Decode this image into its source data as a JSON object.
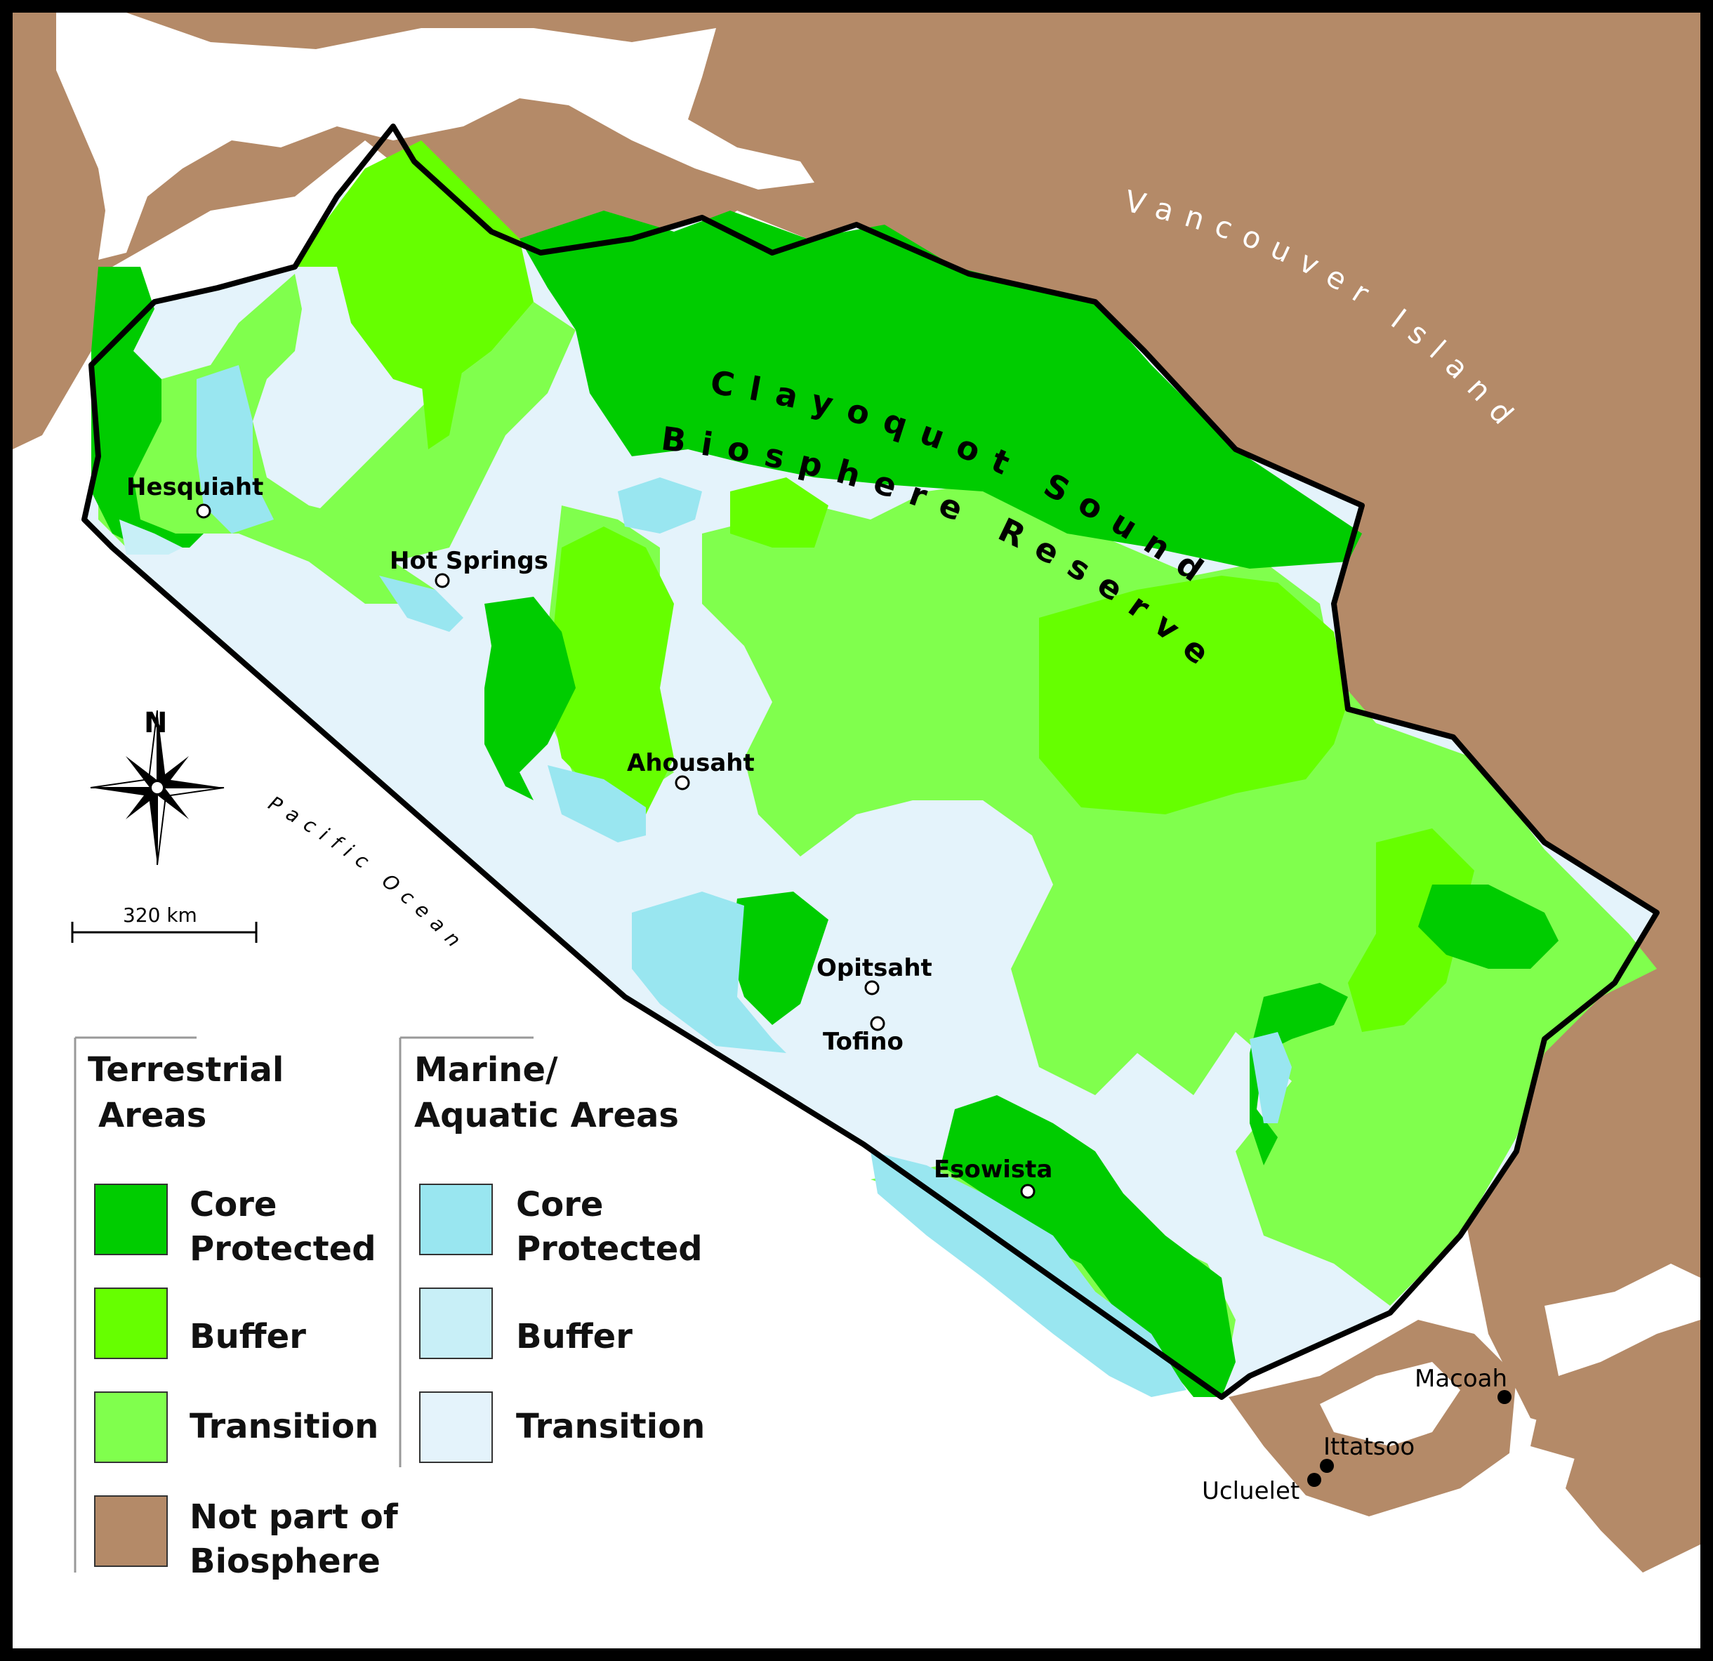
{
  "map": {
    "title_line1": "Clayoquot Sound",
    "title_line2": "Biosphere Reserve",
    "island_label": "Vancouver Island",
    "ocean_label": "Pacific Ocean",
    "north_label": "N",
    "scale_label": "320 km",
    "colors": {
      "land_outside": "#b48a68",
      "sea": "#ffffff",
      "core_terrestrial": "#00cc00",
      "buffer_terrestrial": "#66ff00",
      "transition_terrestrial": "#80ff4d",
      "core_marine": "#99e6f0",
      "buffer_marine": "#c8eff7",
      "transition_marine": "#e4f3fb",
      "frame": "#000000"
    },
    "places": {
      "hesquiaht": "Hesquiaht",
      "hot_springs": "Hot Springs",
      "ahousaht": "Ahousaht",
      "opitsaht": "Opitsaht",
      "tofino": "Tofino",
      "esowista": "Esowista",
      "macoah": "Macoah",
      "ittatsoo": "Ittatsoo",
      "ucluelet": "Ucluelet"
    }
  },
  "legend": {
    "terrestrial": {
      "title_line1": "Terrestrial",
      "title_line2": "Areas",
      "core_line1": "Core",
      "core_line2": "Protected",
      "buffer": "Buffer",
      "transition": "Transition",
      "not_part_line1": "Not part of",
      "not_part_line2": "Biosphere"
    },
    "marine": {
      "title_line1": "Marine/",
      "title_line2": "Aquatic Areas",
      "core_line1": "Core",
      "core_line2": "Protected",
      "buffer": "Buffer",
      "transition": "Transition"
    }
  }
}
